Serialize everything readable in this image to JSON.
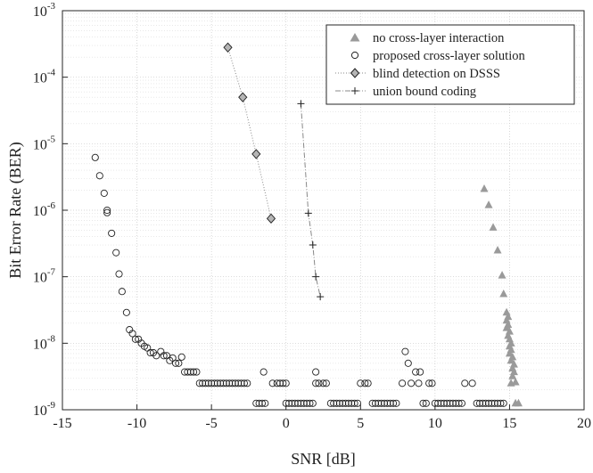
{
  "chart_data": {
    "type": "scatter",
    "xlabel": "SNR [dB]",
    "ylabel": "Bit Error Rate (BER)",
    "xlim": [
      -15,
      20
    ],
    "ylim": [
      1e-09,
      0.001
    ],
    "yscale": "log",
    "xticks": [
      -15,
      -10,
      -5,
      0,
      5,
      10,
      15,
      20
    ],
    "xtick_labels": [
      "-15",
      "-10",
      "-5",
      "0",
      "5",
      "10",
      "15",
      "20"
    ],
    "yticks": [
      {
        "exp": -9,
        "base": "10",
        "sup": "-9"
      },
      {
        "exp": -8,
        "base": "10",
        "sup": "-8"
      },
      {
        "exp": -7,
        "base": "10",
        "sup": "-7"
      },
      {
        "exp": -6,
        "base": "10",
        "sup": "-6"
      },
      {
        "exp": -5,
        "base": "10",
        "sup": "-5"
      },
      {
        "exp": -4,
        "base": "10",
        "sup": "-4"
      },
      {
        "exp": -3,
        "base": "10",
        "sup": "-3"
      }
    ],
    "grid": true,
    "legend_position": "top-right",
    "series": [
      {
        "name": "no cross-layer interaction",
        "marker": "triangle",
        "color": "#9a9a9a",
        "line": "none",
        "points": [
          [
            13.3,
            2.1e-06
          ],
          [
            13.6,
            1.2e-06
          ],
          [
            13.9,
            5.5e-07
          ],
          [
            14.2,
            2.5e-07
          ],
          [
            14.5,
            1.05e-07
          ],
          [
            14.6,
            5.5e-08
          ],
          [
            14.8,
            2.9e-08
          ],
          [
            14.9,
            2.5e-08
          ],
          [
            14.8,
            2.2e-08
          ],
          [
            14.9,
            1.9e-08
          ],
          [
            14.8,
            1.7e-08
          ],
          [
            15.0,
            1.5e-08
          ],
          [
            14.9,
            1.3e-08
          ],
          [
            15.0,
            1.15e-08
          ],
          [
            15.1,
            1e-08
          ],
          [
            15.0,
            9e-09
          ],
          [
            15.1,
            8e-09
          ],
          [
            15.0,
            7e-09
          ],
          [
            15.2,
            6.2e-09
          ],
          [
            15.1,
            5.5e-09
          ],
          [
            15.3,
            4.8e-09
          ],
          [
            15.2,
            4.2e-09
          ],
          [
            15.3,
            3.7e-09
          ],
          [
            15.2,
            3.2e-09
          ],
          [
            15.4,
            2.6e-09
          ],
          [
            15.1,
            2.5e-09
          ],
          [
            15.4,
            1.25e-09
          ],
          [
            15.6,
            1.25e-09
          ]
        ]
      },
      {
        "name": "proposed cross-layer solution",
        "marker": "circle",
        "color": "#222222",
        "line": "none",
        "points": [
          [
            -12.8,
            6.2e-06
          ],
          [
            -12.5,
            3.3e-06
          ],
          [
            -12.2,
            1.8e-06
          ],
          [
            -12.0,
            1e-06
          ],
          [
            -12.0,
            9.2e-07
          ],
          [
            -11.7,
            4.5e-07
          ],
          [
            -11.4,
            2.3e-07
          ],
          [
            -11.2,
            1.1e-07
          ],
          [
            -11.0,
            6e-08
          ],
          [
            -10.7,
            2.9e-08
          ],
          [
            -10.5,
            1.6e-08
          ],
          [
            -10.3,
            1.4e-08
          ],
          [
            -10.1,
            1.15e-08
          ],
          [
            -9.9,
            1.15e-08
          ],
          [
            -9.7,
            1e-08
          ],
          [
            -9.5,
            9e-09
          ],
          [
            -9.3,
            8.5e-09
          ],
          [
            -9.1,
            7.2e-09
          ],
          [
            -8.9,
            7.2e-09
          ],
          [
            -8.7,
            6.5e-09
          ],
          [
            -8.4,
            7.5e-09
          ],
          [
            -8.2,
            6.5e-09
          ],
          [
            -8.0,
            6.5e-09
          ],
          [
            -7.8,
            5.5e-09
          ],
          [
            -7.6,
            6e-09
          ],
          [
            -7.4,
            5e-09
          ],
          [
            -7.2,
            5e-09
          ],
          [
            -7.0,
            6.2e-09
          ],
          [
            -6.8,
            3.7e-09
          ],
          [
            -6.6,
            3.7e-09
          ],
          [
            -6.4,
            3.7e-09
          ],
          [
            -6.2,
            3.7e-09
          ],
          [
            -6.0,
            3.7e-09
          ],
          [
            -5.8,
            2.5e-09
          ],
          [
            -5.6,
            2.5e-09
          ],
          [
            -5.4,
            2.5e-09
          ],
          [
            -5.2,
            2.5e-09
          ],
          [
            -5.0,
            2.5e-09
          ],
          [
            -4.8,
            2.5e-09
          ],
          [
            -4.6,
            2.5e-09
          ],
          [
            -4.4,
            2.5e-09
          ],
          [
            -4.2,
            2.5e-09
          ],
          [
            -4.0,
            2.5e-09
          ],
          [
            -3.8,
            2.5e-09
          ],
          [
            -3.6,
            2.5e-09
          ],
          [
            -3.4,
            2.5e-09
          ],
          [
            -3.2,
            2.5e-09
          ],
          [
            -3.0,
            2.5e-09
          ],
          [
            -2.8,
            2.5e-09
          ],
          [
            -2.6,
            2.5e-09
          ],
          [
            -2.0,
            1.25e-09
          ],
          [
            -1.8,
            1.25e-09
          ],
          [
            -1.6,
            1.25e-09
          ],
          [
            -1.4,
            1.25e-09
          ],
          [
            -1.5,
            3.7e-09
          ],
          [
            -0.9,
            2.5e-09
          ],
          [
            -0.6,
            2.5e-09
          ],
          [
            -0.4,
            2.5e-09
          ],
          [
            -0.2,
            2.5e-09
          ],
          [
            0.0,
            2.5e-09
          ],
          [
            0.0,
            1.25e-09
          ],
          [
            0.2,
            1.25e-09
          ],
          [
            0.4,
            1.25e-09
          ],
          [
            0.6,
            1.25e-09
          ],
          [
            0.8,
            1.25e-09
          ],
          [
            1.0,
            1.25e-09
          ],
          [
            1.2,
            1.25e-09
          ],
          [
            1.4,
            1.25e-09
          ],
          [
            1.6,
            1.25e-09
          ],
          [
            1.8,
            1.25e-09
          ],
          [
            2.0,
            3.7e-09
          ],
          [
            2.0,
            2.5e-09
          ],
          [
            2.2,
            2.5e-09
          ],
          [
            2.5,
            2.5e-09
          ],
          [
            2.7,
            2.5e-09
          ],
          [
            3.0,
            1.25e-09
          ],
          [
            3.2,
            1.25e-09
          ],
          [
            3.4,
            1.25e-09
          ],
          [
            3.6,
            1.25e-09
          ],
          [
            3.8,
            1.25e-09
          ],
          [
            4.0,
            1.25e-09
          ],
          [
            4.2,
            1.25e-09
          ],
          [
            4.4,
            1.25e-09
          ],
          [
            4.6,
            1.25e-09
          ],
          [
            4.8,
            1.25e-09
          ],
          [
            5.0,
            2.5e-09
          ],
          [
            5.3,
            2.5e-09
          ],
          [
            5.5,
            2.5e-09
          ],
          [
            5.8,
            1.25e-09
          ],
          [
            6.0,
            1.25e-09
          ],
          [
            6.2,
            1.25e-09
          ],
          [
            6.4,
            1.25e-09
          ],
          [
            6.6,
            1.25e-09
          ],
          [
            6.8,
            1.25e-09
          ],
          [
            7.0,
            1.25e-09
          ],
          [
            7.2,
            1.25e-09
          ],
          [
            7.4,
            1.25e-09
          ],
          [
            7.8,
            2.5e-09
          ],
          [
            8.0,
            7.5e-09
          ],
          [
            8.2,
            5e-09
          ],
          [
            8.4,
            2.5e-09
          ],
          [
            8.7,
            3.7e-09
          ],
          [
            9.0,
            3.7e-09
          ],
          [
            8.9,
            2.5e-09
          ],
          [
            9.2,
            1.25e-09
          ],
          [
            9.4,
            1.25e-09
          ],
          [
            9.6,
            2.5e-09
          ],
          [
            9.8,
            2.5e-09
          ],
          [
            10.0,
            1.25e-09
          ],
          [
            10.2,
            1.25e-09
          ],
          [
            10.4,
            1.25e-09
          ],
          [
            10.6,
            1.25e-09
          ],
          [
            10.8,
            1.25e-09
          ],
          [
            11.0,
            1.25e-09
          ],
          [
            11.2,
            1.25e-09
          ],
          [
            11.4,
            1.25e-09
          ],
          [
            11.6,
            1.25e-09
          ],
          [
            11.8,
            1.25e-09
          ],
          [
            12.0,
            2.5e-09
          ],
          [
            12.5,
            2.5e-09
          ],
          [
            12.8,
            1.25e-09
          ],
          [
            13.0,
            1.25e-09
          ],
          [
            13.2,
            1.25e-09
          ],
          [
            13.4,
            1.25e-09
          ],
          [
            13.6,
            1.25e-09
          ],
          [
            13.8,
            1.25e-09
          ],
          [
            14.0,
            1.25e-09
          ],
          [
            14.2,
            1.25e-09
          ],
          [
            14.4,
            1.25e-09
          ],
          [
            14.6,
            1.25e-09
          ]
        ]
      },
      {
        "name": "blind detection on DSSS",
        "marker": "diamond",
        "color": "#222222",
        "fill": "#b5b5b5",
        "line": "dotted",
        "points": [
          [
            -3.9,
            0.00028
          ],
          [
            -2.9,
            5e-05
          ],
          [
            -2.0,
            7e-06
          ],
          [
            -1.0,
            7.5e-07
          ]
        ]
      },
      {
        "name": "union bound coding",
        "marker": "plus",
        "color": "#222222",
        "line": "dashdot",
        "points": [
          [
            1.0,
            4e-05
          ],
          [
            1.5,
            9e-07
          ],
          [
            1.8,
            3e-07
          ],
          [
            2.0,
            1e-07
          ],
          [
            2.3,
            5e-08
          ]
        ]
      }
    ]
  }
}
